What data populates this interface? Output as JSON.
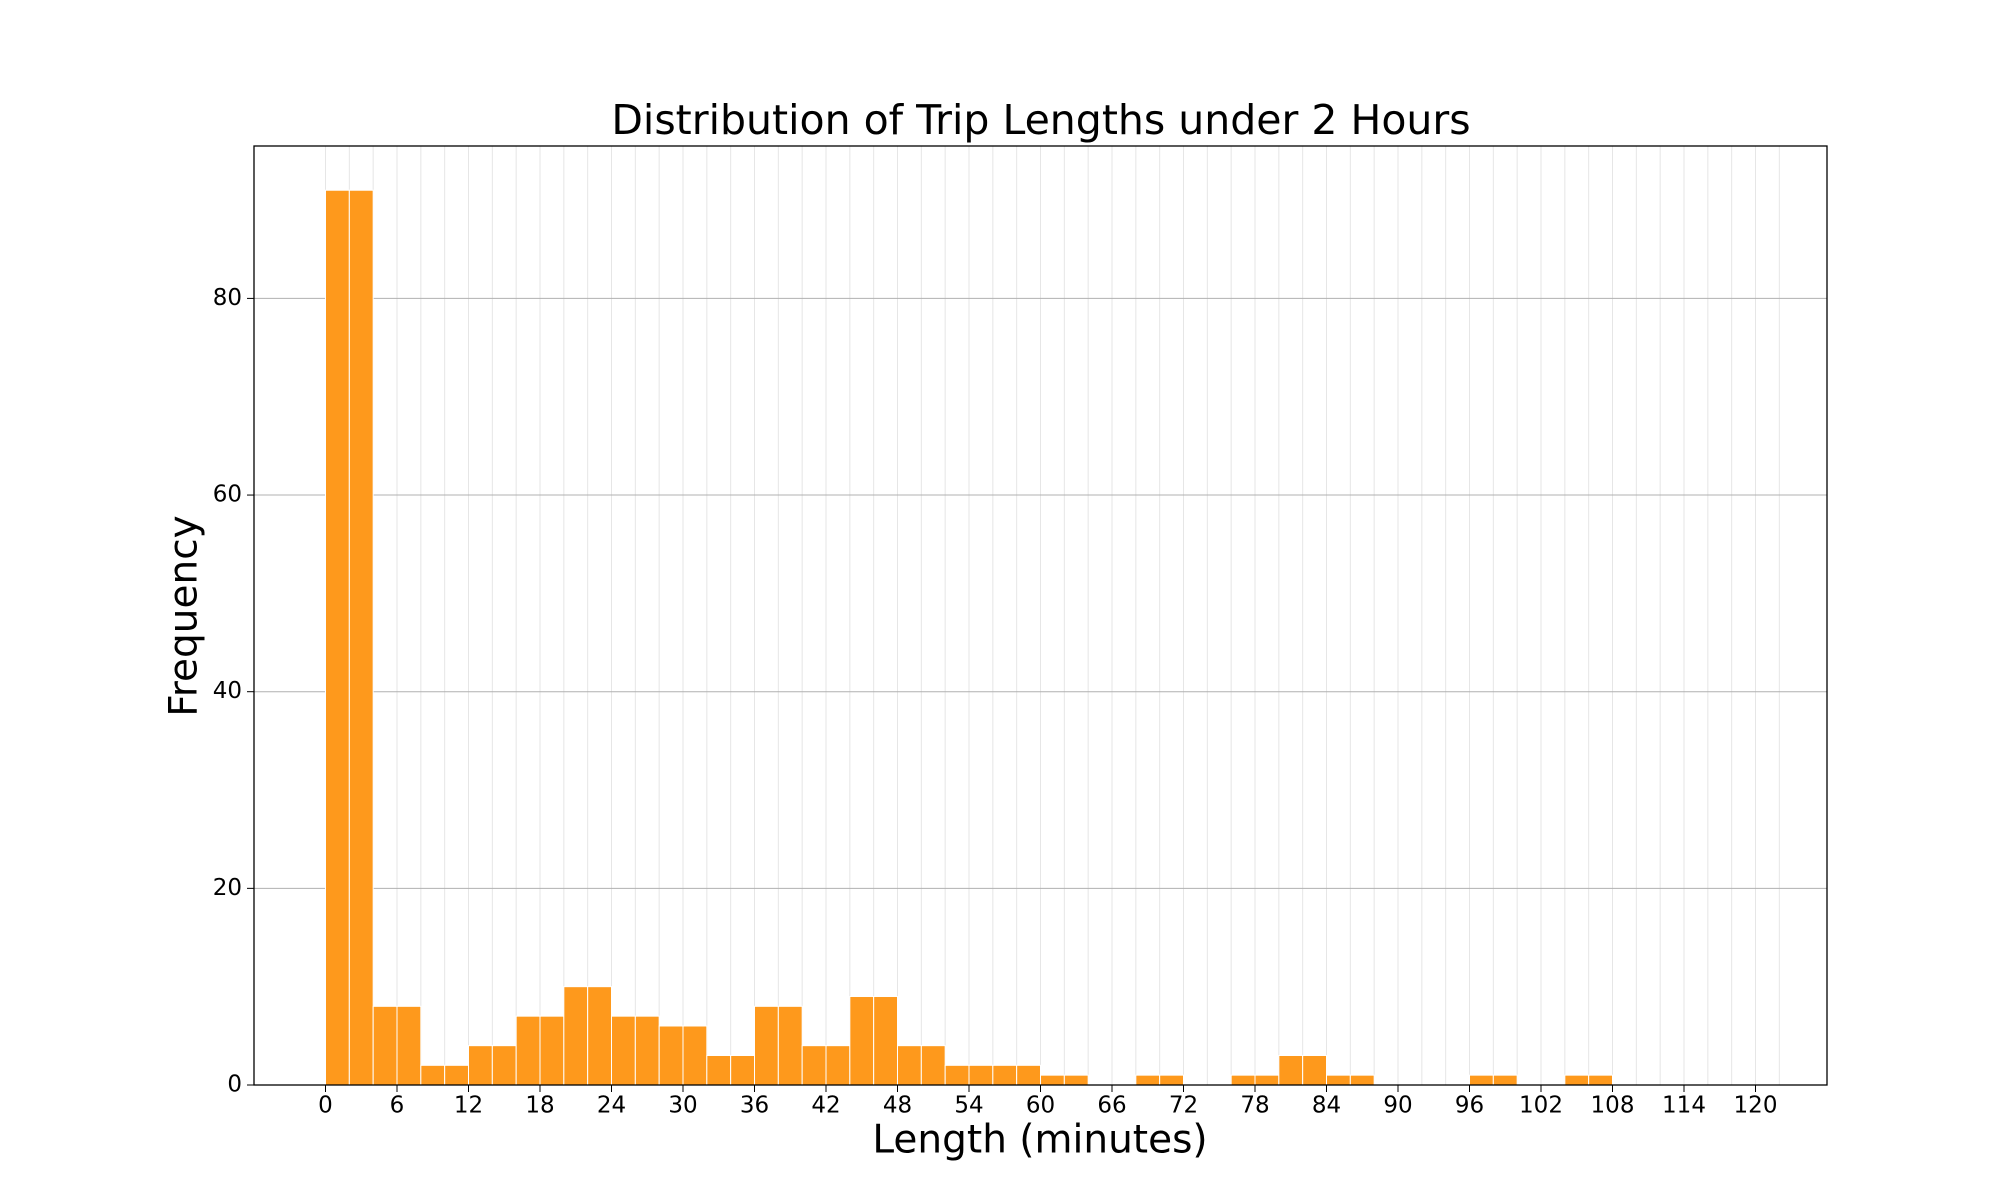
{
  "chart_data": {
    "type": "histogram",
    "title": "Distribution of Trip Lengths under 2 Hours",
    "x_label": "Length (minutes)",
    "y_label": "Frequency",
    "bins": [
      0,
      2,
      4,
      6,
      8,
      10,
      12,
      14,
      16,
      18,
      20,
      22,
      24,
      26,
      28,
      30,
      32,
      34,
      36,
      38,
      40,
      42,
      44,
      46,
      48,
      50,
      52,
      54,
      56,
      58,
      60,
      62,
      64,
      66,
      68,
      70,
      72,
      74,
      76,
      78,
      80,
      82,
      84,
      86,
      88,
      90,
      92,
      94,
      96,
      98,
      100,
      102,
      104,
      106,
      108,
      110,
      112,
      114,
      116,
      118,
      120,
      122
    ],
    "values": [
      91,
      91,
      8,
      8,
      2,
      2,
      4,
      4,
      7,
      7,
      10,
      10,
      7,
      7,
      6,
      6,
      3,
      3,
      8,
      8,
      4,
      4,
      9,
      9,
      4,
      4,
      2,
      2,
      2,
      2,
      1,
      1,
      0,
      0,
      1,
      1,
      0,
      0,
      1,
      1,
      3,
      3,
      1,
      1,
      0,
      0,
      0,
      0,
      1,
      1,
      0,
      0,
      1,
      1,
      0,
      0,
      0,
      0,
      0,
      0,
      0
    ],
    "color": "#fe991c",
    "xlim": [
      -6,
      126
    ],
    "ylim": [
      0,
      95.5
    ],
    "xticks": [
      0,
      6,
      12,
      18,
      24,
      30,
      36,
      42,
      48,
      54,
      60,
      66,
      72,
      78,
      84,
      90,
      96,
      102,
      108,
      114,
      120
    ],
    "yticks": [
      0,
      20,
      40,
      60,
      80
    ],
    "grid": true
  }
}
